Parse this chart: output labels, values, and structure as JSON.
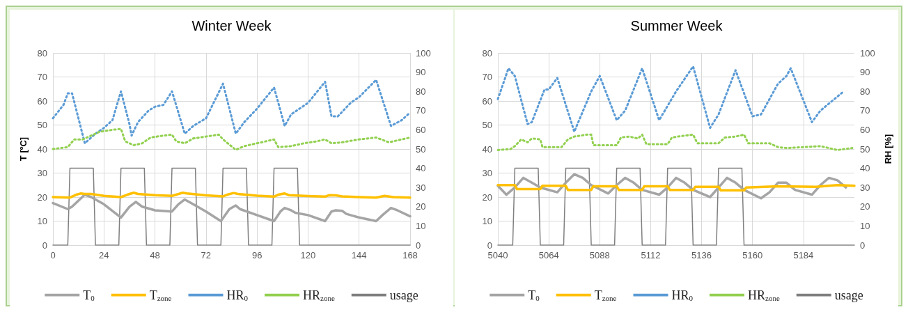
{
  "chart_data": [
    {
      "type": "line",
      "title": "Winter Week",
      "ylabel": "T [ºC]",
      "xlim": [
        0,
        168
      ],
      "xticks": [
        0,
        24,
        48,
        72,
        96,
        120,
        144,
        168
      ],
      "ylim": [
        0,
        80
      ],
      "yticks": [
        0,
        10,
        20,
        30,
        40,
        50,
        60,
        70,
        80
      ],
      "y2lim": [
        0,
        100
      ],
      "y2ticks": [
        0,
        10,
        20,
        30,
        40,
        50,
        60,
        70,
        80,
        90,
        100
      ],
      "grid": true,
      "legend": "bottom",
      "marker": "none",
      "series": [
        {
          "name": "T$_{0}$",
          "color": "#a5a5a5",
          "line_style": "solid",
          "x": [
            0,
            7,
            9,
            15,
            18,
            24,
            32,
            36,
            39,
            42,
            48,
            56,
            59,
            62,
            66,
            72,
            79,
            83,
            86,
            88,
            96,
            104,
            107,
            109,
            112,
            114,
            120,
            128,
            131,
            133,
            136,
            138,
            144,
            152,
            155,
            159,
            162,
            168
          ],
          "values": [
            17.5,
            15,
            16,
            21,
            20,
            17,
            11.5,
            16,
            18,
            16,
            14.5,
            14,
            17,
            19,
            17,
            14,
            10,
            15,
            16.5,
            15,
            12.5,
            10,
            14,
            15.5,
            14.5,
            13.5,
            12.5,
            10,
            14,
            14.5,
            14.3,
            13,
            11.5,
            10,
            12.5,
            15.5,
            14.5,
            12
          ]
        },
        {
          "name": "T$_{zone}$",
          "color": "#ffc000",
          "line_style": "solid",
          "x": [
            0,
            8,
            11,
            13,
            15,
            18,
            24,
            32,
            35,
            38,
            40,
            48,
            56,
            58,
            61,
            63,
            72,
            80,
            82,
            85,
            87,
            96,
            104,
            106,
            109,
            111,
            120,
            128,
            130,
            133,
            136,
            144,
            152,
            156,
            160,
            168
          ],
          "values": [
            20,
            19.8,
            21,
            21.5,
            21.3,
            21.3,
            20.5,
            20,
            21,
            21.8,
            21.3,
            20.8,
            20.5,
            21,
            21.8,
            21.5,
            20.7,
            20.3,
            21,
            21.7,
            21.3,
            20.6,
            20.2,
            21,
            21.5,
            20.8,
            20.4,
            20.2,
            20.8,
            20.7,
            20.3,
            20,
            19.8,
            20.5,
            20,
            19.8
          ]
        },
        {
          "name": "HR$_{0}$",
          "color": "#5b9bd5",
          "line_style": "dotted",
          "axis": "y2",
          "x": [
            0,
            5,
            7,
            9,
            15,
            20,
            24,
            28,
            32,
            36,
            37,
            40,
            45,
            48,
            52,
            56,
            62,
            66,
            72,
            80,
            86,
            90,
            96,
            104,
            109,
            112,
            120,
            128,
            131,
            134,
            140,
            144,
            152,
            159,
            164,
            168
          ],
          "values": [
            66,
            73,
            79,
            79,
            53,
            58,
            61,
            65,
            80,
            63,
            57,
            64,
            70,
            72,
            73,
            80,
            58,
            62,
            66,
            84,
            58,
            64,
            71,
            82,
            62,
            68,
            74,
            85,
            67,
            67,
            74,
            77,
            86,
            62,
            65,
            69
          ]
        },
        {
          "name": "HR$_{zone}$",
          "color": "#92d050",
          "line_style": "dotted",
          "axis": "y2",
          "x": [
            0,
            7,
            10,
            14,
            18,
            22,
            28,
            32,
            34,
            38,
            42,
            46,
            52,
            56,
            58,
            62,
            66,
            72,
            78,
            80,
            86,
            90,
            96,
            104,
            106,
            112,
            118,
            124,
            128,
            131,
            136,
            144,
            152,
            158,
            164,
            168
          ],
          "values": [
            50,
            51,
            55,
            55,
            57,
            59,
            60,
            60.5,
            54,
            52,
            53,
            56,
            57,
            57.5,
            54,
            53,
            55.5,
            56.5,
            57.5,
            55,
            49.6,
            51.5,
            53,
            55,
            51,
            51.5,
            53,
            54,
            55,
            53,
            53.5,
            55,
            56,
            53.5,
            55,
            56
          ]
        },
        {
          "name": "usage",
          "color": "#7f7f7f",
          "line_style": "solid",
          "axis": "y2",
          "x": [
            0,
            7,
            8,
            19,
            20,
            31,
            32,
            43,
            44,
            55,
            56,
            67,
            68,
            79,
            80,
            91,
            92,
            103,
            104,
            115,
            116,
            168
          ],
          "values": [
            0,
            0,
            40,
            40,
            0,
            0,
            40,
            40,
            0,
            0,
            40,
            40,
            0,
            0,
            40,
            40,
            0,
            0,
            40,
            40,
            0,
            0
          ]
        }
      ]
    },
    {
      "type": "line",
      "title": "Summer Week",
      "y2label": "RH [%]",
      "xlim": [
        5040,
        5208
      ],
      "xticks": [
        5040,
        5064,
        5088,
        5112,
        5136,
        5160,
        5184
      ],
      "ylim": [
        0,
        80
      ],
      "yticks": [
        0,
        10,
        20,
        30,
        40,
        50,
        60,
        70,
        80
      ],
      "y2lim": [
        0,
        100
      ],
      "y2ticks": [
        0,
        10,
        20,
        30,
        40,
        50,
        60,
        70,
        80,
        90,
        100
      ],
      "grid": true,
      "legend": "bottom",
      "marker": "none",
      "series": [
        {
          "name": "T$_{0}$",
          "color": "#a5a5a5",
          "line_style": "solid",
          "x": [
            5040,
            5044,
            5048,
            5052,
            5056,
            5060,
            5068,
            5072,
            5076,
            5080,
            5084,
            5092,
            5096,
            5100,
            5104,
            5108,
            5116,
            5120,
            5124,
            5128,
            5132,
            5140,
            5144,
            5148,
            5152,
            5156,
            5164,
            5168,
            5172,
            5176,
            5180,
            5188,
            5192,
            5196,
            5200,
            5204
          ],
          "values": [
            24.7,
            21,
            24,
            28,
            26,
            24,
            22,
            26,
            29.5,
            28,
            25,
            21.5,
            25,
            28,
            26,
            23,
            21,
            24,
            28,
            26,
            23,
            20,
            24,
            28,
            26,
            23,
            19.5,
            22,
            26,
            26,
            23,
            21,
            25,
            28,
            27,
            24
          ]
        },
        {
          "name": "T$_{zone}$",
          "color": "#ffc000",
          "line_style": "solid",
          "x": [
            5040,
            5048,
            5049,
            5060,
            5061,
            5072,
            5073,
            5084,
            5085,
            5096,
            5097,
            5108,
            5109,
            5120,
            5121,
            5132,
            5133,
            5144,
            5145,
            5156,
            5157,
            5172,
            5190,
            5200,
            5208
          ],
          "values": [
            25,
            25,
            23.3,
            23.3,
            24.7,
            24.7,
            23,
            23,
            24.5,
            24.5,
            23,
            23,
            24.5,
            24.5,
            23,
            23,
            24.3,
            24.3,
            22.8,
            22.8,
            24,
            24.5,
            24.3,
            25,
            24.7
          ]
        },
        {
          "name": "HR$_{0}$",
          "color": "#5b9bd5",
          "line_style": "dotted",
          "axis": "y2",
          "x": [
            5040,
            5045,
            5048,
            5054,
            5056,
            5062,
            5064,
            5068,
            5076,
            5084,
            5088,
            5096,
            5100,
            5108,
            5116,
            5124,
            5132,
            5140,
            5144,
            5152,
            5160,
            5164,
            5172,
            5176,
            5178,
            5188,
            5192,
            5203
          ],
          "values": [
            76,
            92,
            88,
            63,
            64,
            81,
            81,
            87,
            59,
            80,
            88,
            65,
            70,
            92,
            65,
            80,
            93,
            61,
            68,
            91,
            67,
            68,
            84,
            88,
            92,
            64,
            70,
            80
          ]
        },
        {
          "name": "HR$_{zone}$",
          "color": "#92d050",
          "line_style": "dotted",
          "axis": "y2",
          "x": [
            5040,
            5046,
            5048,
            5051,
            5054,
            5056,
            5060,
            5061,
            5070,
            5073,
            5076,
            5082,
            5084,
            5085,
            5096,
            5098,
            5102,
            5106,
            5108,
            5110,
            5120,
            5122,
            5128,
            5132,
            5134,
            5144,
            5147,
            5152,
            5156,
            5158,
            5168,
            5172,
            5176,
            5184,
            5192,
            5198,
            5200,
            5207
          ],
          "values": [
            49.5,
            50,
            51.5,
            55,
            53.5,
            55.5,
            55,
            51,
            51,
            55,
            56.5,
            57.5,
            57.5,
            52,
            52,
            56,
            56.5,
            55.5,
            57.5,
            52.5,
            52.5,
            56,
            57,
            57.5,
            53,
            53,
            56,
            56.5,
            57.5,
            53,
            53,
            51,
            50.5,
            51,
            51.5,
            50,
            49.5,
            50.5
          ]
        },
        {
          "name": "usage",
          "color": "#7f7f7f",
          "line_style": "solid",
          "axis": "y2",
          "x": [
            5040,
            5047,
            5048,
            5059,
            5060,
            5071,
            5072,
            5083,
            5084,
            5095,
            5096,
            5107,
            5108,
            5119,
            5120,
            5131,
            5132,
            5143,
            5144,
            5155,
            5156,
            5208
          ],
          "values": [
            0,
            0,
            40,
            40,
            0,
            0,
            40,
            40,
            0,
            0,
            40,
            40,
            0,
            0,
            40,
            40,
            0,
            0,
            40,
            40,
            0,
            0
          ]
        }
      ]
    }
  ]
}
